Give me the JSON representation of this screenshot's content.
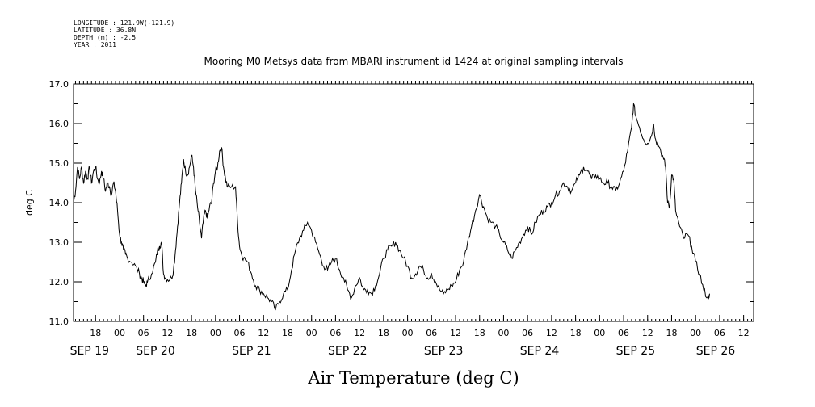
{
  "header": {
    "longitude": "LONGITUDE : 121.9W(-121.9)",
    "latitude": "LATITUDE : 36.8N",
    "depth": "DEPTH (m) : -2.5",
    "year": "YEAR : 2011"
  },
  "chart_data": {
    "type": "line",
    "title": "Mooring M0 Metsys data from MBARI instrument id 1424 at original sampling intervals",
    "xlabel": "Air Temperature (deg C)",
    "ylabel": "deg C",
    "ylim": [
      11.0,
      17.0
    ],
    "yticks": [
      "11.0",
      "12.0",
      "13.0",
      "14.0",
      "15.0",
      "16.0",
      "17.0"
    ],
    "xlim_hours": [
      12.5,
      182.5
    ],
    "hour_ticks": [
      {
        "h": 18,
        "label": "18"
      },
      {
        "h": 24,
        "label": "00"
      },
      {
        "h": 30,
        "label": "06"
      },
      {
        "h": 36,
        "label": "12"
      },
      {
        "h": 42,
        "label": "18"
      },
      {
        "h": 48,
        "label": "00"
      },
      {
        "h": 54,
        "label": "06"
      },
      {
        "h": 60,
        "label": "12"
      },
      {
        "h": 66,
        "label": "18"
      },
      {
        "h": 72,
        "label": "00"
      },
      {
        "h": 78,
        "label": "06"
      },
      {
        "h": 84,
        "label": "12"
      },
      {
        "h": 90,
        "label": "18"
      },
      {
        "h": 96,
        "label": "00"
      },
      {
        "h": 102,
        "label": "06"
      },
      {
        "h": 108,
        "label": "12"
      },
      {
        "h": 114,
        "label": "18"
      },
      {
        "h": 120,
        "label": "00"
      },
      {
        "h": 126,
        "label": "06"
      },
      {
        "h": 132,
        "label": "12"
      },
      {
        "h": 138,
        "label": "18"
      },
      {
        "h": 144,
        "label": "00"
      },
      {
        "h": 150,
        "label": "06"
      },
      {
        "h": 156,
        "label": "12"
      },
      {
        "h": 162,
        "label": "18"
      },
      {
        "h": 168,
        "label": "00"
      },
      {
        "h": 174,
        "label": "06"
      },
      {
        "h": 180,
        "label": "12"
      }
    ],
    "day_labels": [
      {
        "h": 16.5,
        "label": "SEP 19"
      },
      {
        "h": 33.0,
        "label": "SEP 20"
      },
      {
        "h": 57.0,
        "label": "SEP 21"
      },
      {
        "h": 81.0,
        "label": "SEP 22"
      },
      {
        "h": 105.0,
        "label": "SEP 23"
      },
      {
        "h": 129.0,
        "label": "SEP 24"
      },
      {
        "h": 153.0,
        "label": "SEP 25"
      },
      {
        "h": 173.0,
        "label": "SEP 26"
      }
    ],
    "grid": false,
    "series": [
      {
        "color": "#000000",
        "points": [
          [
            12.5,
            14.0
          ],
          [
            13.0,
            14.3
          ],
          [
            13.5,
            14.9
          ],
          [
            14.0,
            14.6
          ],
          [
            14.5,
            14.9
          ],
          [
            15.0,
            14.5
          ],
          [
            15.5,
            14.8
          ],
          [
            16.0,
            14.6
          ],
          [
            16.5,
            14.9
          ],
          [
            17.0,
            14.5
          ],
          [
            17.5,
            14.8
          ],
          [
            18.0,
            14.9
          ],
          [
            18.5,
            14.6
          ],
          [
            19.0,
            14.5
          ],
          [
            19.5,
            14.8
          ],
          [
            20.0,
            14.6
          ],
          [
            20.5,
            14.3
          ],
          [
            21.0,
            14.5
          ],
          [
            21.5,
            14.4
          ],
          [
            22.0,
            14.2
          ],
          [
            22.5,
            14.5
          ],
          [
            23.0,
            14.3
          ],
          [
            23.5,
            13.8
          ],
          [
            24.0,
            13.2
          ],
          [
            24.5,
            13.0
          ],
          [
            25.0,
            12.8
          ],
          [
            25.5,
            12.7
          ],
          [
            26.0,
            12.6
          ],
          [
            27.0,
            12.5
          ],
          [
            28.0,
            12.4
          ],
          [
            29.0,
            12.2
          ],
          [
            29.5,
            12.1
          ],
          [
            30.0,
            12.0
          ],
          [
            30.5,
            11.9
          ],
          [
            31.0,
            12.0
          ],
          [
            32.0,
            12.2
          ],
          [
            33.0,
            12.5
          ],
          [
            33.5,
            12.8
          ],
          [
            34.0,
            12.9
          ],
          [
            34.5,
            13.0
          ],
          [
            35.0,
            12.2
          ],
          [
            35.5,
            12.1
          ],
          [
            36.0,
            12.05
          ],
          [
            37.0,
            12.1
          ],
          [
            37.5,
            12.3
          ],
          [
            38.0,
            12.8
          ],
          [
            38.5,
            13.4
          ],
          [
            39.0,
            14.0
          ],
          [
            39.5,
            14.5
          ],
          [
            40.0,
            15.1
          ],
          [
            40.5,
            14.8
          ],
          [
            41.0,
            14.7
          ],
          [
            41.5,
            14.9
          ],
          [
            42.0,
            15.2
          ],
          [
            42.5,
            14.9
          ],
          [
            43.0,
            14.3
          ],
          [
            43.5,
            13.9
          ],
          [
            44.0,
            13.5
          ],
          [
            44.5,
            13.1
          ],
          [
            45.0,
            13.6
          ],
          [
            45.5,
            13.8
          ],
          [
            46.0,
            13.6
          ],
          [
            46.5,
            13.9
          ],
          [
            47.0,
            14.0
          ],
          [
            47.5,
            14.5
          ],
          [
            48.0,
            14.8
          ],
          [
            48.5,
            14.9
          ],
          [
            49.0,
            15.3
          ],
          [
            49.5,
            15.4
          ],
          [
            50.0,
            14.9
          ],
          [
            50.5,
            14.6
          ],
          [
            51.0,
            14.4
          ],
          [
            52.0,
            14.4
          ],
          [
            53.0,
            14.4
          ],
          [
            53.5,
            13.5
          ],
          [
            54.0,
            12.9
          ],
          [
            54.5,
            12.7
          ],
          [
            55.0,
            12.6
          ],
          [
            56.0,
            12.5
          ],
          [
            57.0,
            12.2
          ],
          [
            58.0,
            11.9
          ],
          [
            59.0,
            11.8
          ],
          [
            60.0,
            11.7
          ],
          [
            61.0,
            11.6
          ],
          [
            62.0,
            11.5
          ],
          [
            63.0,
            11.3
          ],
          [
            64.0,
            11.5
          ],
          [
            65.0,
            11.7
          ],
          [
            66.0,
            11.8
          ],
          [
            67.0,
            12.3
          ],
          [
            68.0,
            12.8
          ],
          [
            69.0,
            13.1
          ],
          [
            70.0,
            13.3
          ],
          [
            71.0,
            13.5
          ],
          [
            72.0,
            13.3
          ],
          [
            73.0,
            13.0
          ],
          [
            74.0,
            12.7
          ],
          [
            75.0,
            12.4
          ],
          [
            76.0,
            12.3
          ],
          [
            77.0,
            12.5
          ],
          [
            78.0,
            12.6
          ],
          [
            79.0,
            12.3
          ],
          [
            80.0,
            12.1
          ],
          [
            81.0,
            11.8
          ],
          [
            82.0,
            11.6
          ],
          [
            83.0,
            11.9
          ],
          [
            84.0,
            12.1
          ],
          [
            85.0,
            11.8
          ],
          [
            86.0,
            11.8
          ],
          [
            87.0,
            11.7
          ],
          [
            88.0,
            11.9
          ],
          [
            89.0,
            12.2
          ],
          [
            90.0,
            12.6
          ],
          [
            91.0,
            12.8
          ],
          [
            92.0,
            12.9
          ],
          [
            93.0,
            13.0
          ],
          [
            94.0,
            12.8
          ],
          [
            95.0,
            12.6
          ],
          [
            96.0,
            12.4
          ],
          [
            97.0,
            12.1
          ],
          [
            98.0,
            12.2
          ],
          [
            99.0,
            12.4
          ],
          [
            100.0,
            12.3
          ],
          [
            101.0,
            12.1
          ],
          [
            102.0,
            12.2
          ],
          [
            103.0,
            12.0
          ],
          [
            104.0,
            11.8
          ],
          [
            105.0,
            11.7
          ],
          [
            106.0,
            11.8
          ],
          [
            107.0,
            11.9
          ],
          [
            108.0,
            12.0
          ],
          [
            109.0,
            12.3
          ],
          [
            110.0,
            12.5
          ],
          [
            111.0,
            13.0
          ],
          [
            112.0,
            13.4
          ],
          [
            113.0,
            13.8
          ],
          [
            114.0,
            14.2
          ],
          [
            115.0,
            13.9
          ],
          [
            116.0,
            13.6
          ],
          [
            117.0,
            13.5
          ],
          [
            118.0,
            13.4
          ],
          [
            119.0,
            13.2
          ],
          [
            120.0,
            13.0
          ],
          [
            121.0,
            12.8
          ],
          [
            122.0,
            12.6
          ],
          [
            123.0,
            12.8
          ],
          [
            124.0,
            13.0
          ],
          [
            125.0,
            13.2
          ],
          [
            126.0,
            13.4
          ],
          [
            127.0,
            13.2
          ],
          [
            128.0,
            13.5
          ],
          [
            129.0,
            13.7
          ],
          [
            130.0,
            13.8
          ],
          [
            131.0,
            13.9
          ],
          [
            132.0,
            14.0
          ],
          [
            133.0,
            14.2
          ],
          [
            134.0,
            14.3
          ],
          [
            135.0,
            14.5
          ],
          [
            136.0,
            14.4
          ],
          [
            137.0,
            14.3
          ],
          [
            138.0,
            14.5
          ],
          [
            139.0,
            14.7
          ],
          [
            140.0,
            14.9
          ],
          [
            141.0,
            14.8
          ],
          [
            142.0,
            14.6
          ],
          [
            143.0,
            14.7
          ],
          [
            144.0,
            14.6
          ],
          [
            145.0,
            14.5
          ],
          [
            146.0,
            14.5
          ],
          [
            147.0,
            14.4
          ],
          [
            148.0,
            14.3
          ],
          [
            149.0,
            14.5
          ],
          [
            150.0,
            14.8
          ],
          [
            151.0,
            15.3
          ],
          [
            152.0,
            15.9
          ],
          [
            152.5,
            16.5
          ],
          [
            153.0,
            16.2
          ],
          [
            154.0,
            15.9
          ],
          [
            155.0,
            15.6
          ],
          [
            156.0,
            15.5
          ],
          [
            157.0,
            15.7
          ],
          [
            157.5,
            16.0
          ],
          [
            158.0,
            15.6
          ],
          [
            159.0,
            15.4
          ],
          [
            160.0,
            15.1
          ],
          [
            160.5,
            14.9
          ],
          [
            161.0,
            14.0
          ],
          [
            161.5,
            13.9
          ],
          [
            162.0,
            14.7
          ],
          [
            162.5,
            14.6
          ],
          [
            163.0,
            13.8
          ],
          [
            164.0,
            13.4
          ],
          [
            165.0,
            13.1
          ],
          [
            166.0,
            13.2
          ],
          [
            167.0,
            12.9
          ],
          [
            168.0,
            12.5
          ],
          [
            169.0,
            12.2
          ],
          [
            170.0,
            11.8
          ],
          [
            171.0,
            11.6
          ],
          [
            171.5,
            11.7
          ]
        ]
      }
    ]
  }
}
